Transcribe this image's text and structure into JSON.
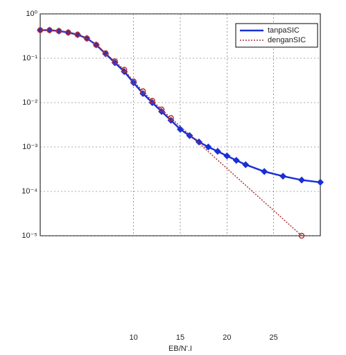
{
  "chart_data": {
    "type": "line",
    "x_label": "EB/N'.I",
    "xlim": [
      0,
      30
    ],
    "xticks": [
      10,
      15,
      20,
      25
    ],
    "ylim": [
      1e-05,
      1
    ],
    "log_y": true,
    "yticks": [
      {
        "value": 1,
        "label": "10⁰"
      },
      {
        "value": 0.1,
        "label": "10⁻¹"
      },
      {
        "value": 0.01,
        "label": "10⁻²"
      },
      {
        "value": 0.001,
        "label": "10⁻³"
      },
      {
        "value": 0.0001,
        "label": "10⁻⁴"
      },
      {
        "value": 1e-05,
        "label": "10⁻⁵"
      }
    ],
    "grid": true,
    "legend": "upper-right",
    "series": [
      {
        "name": "tanpaSIC",
        "color": "#1a2fd6",
        "marker": "diamond",
        "dash": false,
        "x": [
          0,
          1,
          2,
          3,
          4,
          5,
          6,
          7,
          8,
          9,
          10,
          11,
          12,
          13,
          14,
          15,
          16,
          17,
          18,
          19,
          20,
          21,
          22,
          24,
          26,
          28,
          30
        ],
        "values": [
          0.43,
          0.43,
          0.41,
          0.38,
          0.34,
          0.28,
          0.2,
          0.126,
          0.079,
          0.05,
          0.028,
          0.016,
          0.01,
          0.0063,
          0.004,
          0.0025,
          0.0018,
          0.0013,
          0.001,
          0.0008,
          0.00063,
          0.0005,
          0.0004,
          0.00028,
          0.00022,
          0.00018,
          0.00016
        ]
      },
      {
        "name": "denganSIC",
        "color": "#b03030",
        "marker": "circle",
        "dash": true,
        "x": [
          0,
          1,
          2,
          3,
          4,
          5,
          6,
          7,
          8,
          9,
          10,
          11,
          12,
          13,
          14,
          28
        ],
        "values": [
          0.43,
          0.43,
          0.41,
          0.38,
          0.34,
          0.28,
          0.2,
          0.13,
          0.085,
          0.055,
          0.03,
          0.018,
          0.011,
          0.007,
          0.0045,
          1e-05
        ]
      }
    ]
  }
}
